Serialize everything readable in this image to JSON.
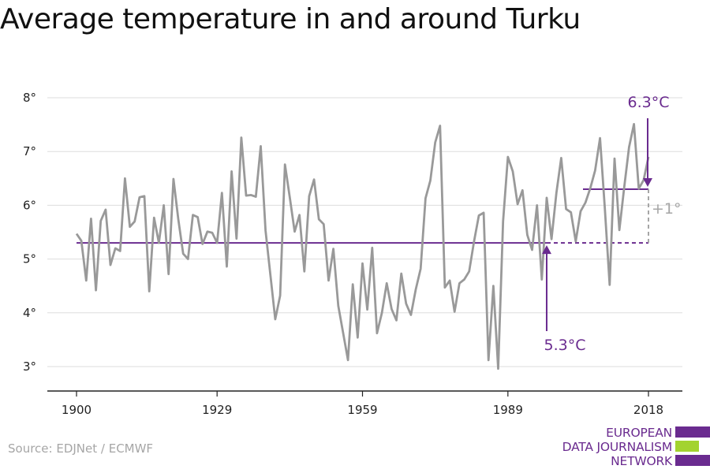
{
  "title": "Average temperature in and around Turku",
  "source": "Source: EDJNet / ECMWF",
  "logo": {
    "line1": "EUROPEAN",
    "line2": "DATA JOURNALISM",
    "line3": "NETWORK",
    "colors": {
      "purple": "#6a2b8f",
      "green": "#a3d32f"
    }
  },
  "annotations": {
    "recent_avg_label": "6.3°C",
    "early_avg_label": "5.3°C",
    "delta_label": "+1°"
  },
  "colors": {
    "line": "#999999",
    "accent": "#6a2b8f",
    "grid": "#dddddd",
    "muted": "#a6a6a6"
  },
  "chart_data": {
    "type": "line",
    "title": "Average temperature in and around Turku",
    "xlabel": "",
    "ylabel": "",
    "xlim": [
      1900,
      2018
    ],
    "ylim": [
      3,
      8
    ],
    "yticks": [
      3,
      4,
      5,
      6,
      7,
      8
    ],
    "ytick_labels": [
      "3°",
      "4°",
      "5°",
      "6°",
      "7°",
      "8°"
    ],
    "xticks": [
      1900,
      1929,
      1959,
      1989,
      2018
    ],
    "xtick_labels": [
      "1900",
      "1929",
      "1959",
      "1989",
      "2018"
    ],
    "grid": true,
    "x": [
      1900,
      1901,
      1902,
      1903,
      1904,
      1905,
      1906,
      1907,
      1908,
      1909,
      1910,
      1911,
      1912,
      1913,
      1914,
      1915,
      1916,
      1917,
      1918,
      1919,
      1920,
      1921,
      1922,
      1923,
      1924,
      1925,
      1926,
      1927,
      1928,
      1929,
      1930,
      1931,
      1932,
      1933,
      1934,
      1935,
      1936,
      1937,
      1938,
      1939,
      1940,
      1941,
      1942,
      1943,
      1944,
      1945,
      1946,
      1947,
      1948,
      1949,
      1950,
      1951,
      1952,
      1953,
      1954,
      1955,
      1956,
      1957,
      1958,
      1959,
      1960,
      1961,
      1962,
      1963,
      1964,
      1965,
      1966,
      1967,
      1968,
      1969,
      1970,
      1971,
      1972,
      1973,
      1974,
      1975,
      1976,
      1977,
      1978,
      1979,
      1980,
      1981,
      1982,
      1983,
      1984,
      1985,
      1986,
      1987,
      1988,
      1989,
      1990,
      1991,
      1992,
      1993,
      1994,
      1995,
      1996,
      1997,
      1998,
      1999,
      2000,
      2001,
      2002,
      2003,
      2004,
      2005,
      2006,
      2007,
      2008,
      2009,
      2010,
      2011,
      2012,
      2013,
      2014,
      2015,
      2016,
      2017,
      2018
    ],
    "series": [
      {
        "values": [
          5.47,
          5.34,
          4.6,
          5.75,
          4.42,
          5.71,
          5.92,
          4.89,
          5.2,
          5.15,
          6.5,
          5.6,
          5.7,
          6.15,
          6.17,
          4.4,
          5.77,
          5.3,
          6.0,
          4.72,
          6.49,
          5.74,
          5.1,
          5.0,
          5.82,
          5.78,
          5.28,
          5.51,
          5.49,
          5.3,
          6.23,
          4.86,
          6.63,
          5.38,
          7.26,
          6.18,
          6.19,
          6.16,
          7.1,
          5.53,
          4.7,
          3.88,
          4.32,
          6.76,
          6.15,
          5.51,
          5.82,
          4.77,
          6.17,
          6.48,
          5.74,
          5.65,
          4.6,
          5.19,
          4.13,
          3.63,
          3.12,
          4.53,
          3.54,
          4.92,
          4.06,
          5.21,
          3.62,
          4.0,
          4.55,
          4.07,
          3.86,
          4.73,
          4.17,
          3.96,
          4.44,
          4.82,
          6.13,
          6.46,
          7.17,
          7.48,
          4.47,
          4.6,
          4.02,
          4.55,
          4.62,
          4.77,
          5.32,
          5.81,
          5.86,
          3.12,
          4.5,
          2.96,
          5.7,
          6.9,
          6.63,
          6.02,
          6.28,
          5.45,
          5.17,
          6.0,
          4.62,
          6.14,
          5.37,
          6.23,
          6.88,
          5.93,
          5.87,
          5.33,
          5.89,
          6.05,
          6.32,
          6.65,
          7.25,
          5.94,
          4.52,
          6.87,
          5.54,
          6.34,
          7.08,
          7.51,
          6.31,
          6.47,
          6.9
        ]
      }
    ],
    "reference_lines": [
      {
        "label": "5.3°C",
        "value": 5.3,
        "from": 1900,
        "to": 2018
      },
      {
        "label": "6.3°C",
        "value": 6.3,
        "from": 2011,
        "to": 2018
      }
    ]
  }
}
